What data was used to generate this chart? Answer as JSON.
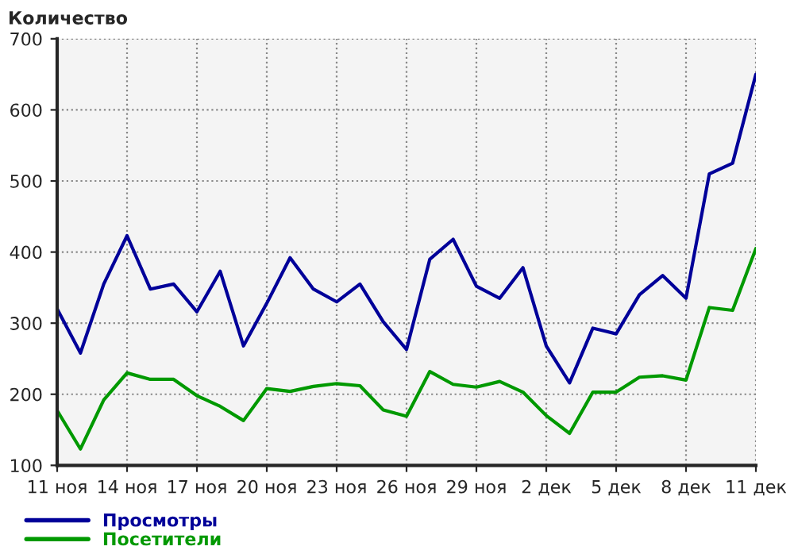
{
  "chart_data": {
    "type": "line",
    "ylabel": "Количество",
    "categories": [
      "11 ноя",
      null,
      null,
      "14 ноя",
      null,
      null,
      "17 ноя",
      null,
      null,
      "20 ноя",
      null,
      null,
      "23 ноя",
      null,
      null,
      "26 ноя",
      null,
      null,
      "29 ноя",
      null,
      null,
      "2 дек",
      null,
      null,
      "5 дек",
      null,
      null,
      "8 дек",
      null,
      null,
      "11 дек"
    ],
    "series": [
      {
        "name": "Просмотры",
        "color": "#000099",
        "values": [
          320,
          258,
          355,
          423,
          348,
          355,
          316,
          373,
          268,
          328,
          392,
          348,
          330,
          355,
          302,
          263,
          390,
          418,
          352,
          335,
          378,
          268,
          216,
          293,
          285,
          340,
          367,
          335,
          510,
          525,
          650
        ]
      },
      {
        "name": "Посетители",
        "color": "#009900",
        "values": [
          177,
          123,
          192,
          230,
          221,
          221,
          198,
          183,
          163,
          208,
          204,
          211,
          215,
          212,
          178,
          169,
          232,
          214,
          210,
          218,
          203,
          170,
          145,
          203,
          203,
          224,
          226,
          220,
          322,
          318,
          405
        ]
      }
    ],
    "ylim": [
      100,
      700
    ],
    "yticks": [
      100,
      200,
      300,
      400,
      500,
      600,
      700
    ],
    "grid": true,
    "legend": "bottom left",
    "marker": "none",
    "line_style": "solid"
  }
}
